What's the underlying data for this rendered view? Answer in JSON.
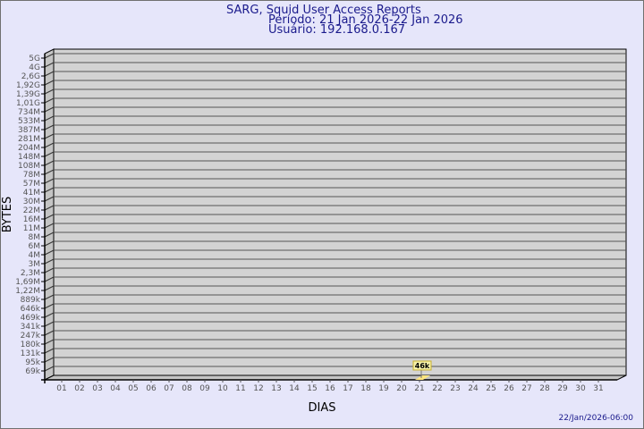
{
  "header": {
    "title": "SARG, Squid User Access Reports",
    "period": "Período: 21 Jan 2026-22 Jan 2026",
    "user": "Usuário: 192.168.0.167"
  },
  "footer": {
    "timestamp": "22/Jan/2026-06:00"
  },
  "colors": {
    "background": "#e6e6fa",
    "plot": "#d3d3d3",
    "title": "#1a1a8c",
    "bar": "#ffe680"
  },
  "chart_data": {
    "type": "bar",
    "xlabel": "DIAS",
    "ylabel": "BYTES",
    "y_scale": "log",
    "grid": true,
    "y_tick_labels": [
      "5G",
      "4G",
      "2,6G",
      "1,92G",
      "1,39G",
      "1,01G",
      "734M",
      "533M",
      "387M",
      "281M",
      "204M",
      "148M",
      "108M",
      "78M",
      "57M",
      "41M",
      "30M",
      "22M",
      "16M",
      "11M",
      "8M",
      "6M",
      "4M",
      "3M",
      "2,3M",
      "1,69M",
      "1,22M",
      "889k",
      "646k",
      "469k",
      "341k",
      "247k",
      "180k",
      "131k",
      "95k",
      "69k"
    ],
    "categories": [
      "01",
      "02",
      "03",
      "04",
      "05",
      "06",
      "07",
      "08",
      "09",
      "10",
      "11",
      "12",
      "13",
      "14",
      "15",
      "16",
      "17",
      "18",
      "19",
      "20",
      "21",
      "22",
      "23",
      "24",
      "25",
      "26",
      "27",
      "28",
      "29",
      "30",
      "31"
    ],
    "bars": [
      {
        "day": "21",
        "value": 46000,
        "label": "46k"
      }
    ]
  }
}
